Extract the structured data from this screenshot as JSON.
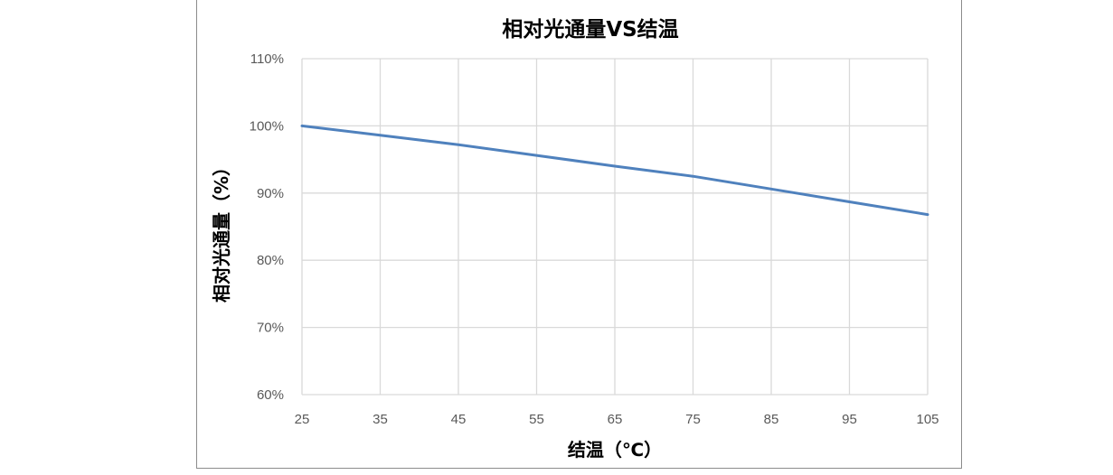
{
  "chart_data": {
    "type": "line",
    "title": "相对光通量VS结温",
    "xlabel": "结温（℃）",
    "ylabel": "相对光通量（%）",
    "x": [
      25,
      35,
      45,
      55,
      65,
      75,
      85,
      95,
      105
    ],
    "x_tick_labels": [
      "25",
      "35",
      "45",
      "55",
      "65",
      "75",
      "85",
      "95",
      "105"
    ],
    "xlim": [
      25,
      105
    ],
    "ylim": [
      60,
      110
    ],
    "y_ticks": [
      60,
      70,
      80,
      90,
      100,
      110
    ],
    "y_tick_labels": [
      "60%",
      "70%",
      "80%",
      "90%",
      "100%",
      "110%"
    ],
    "grid": true,
    "legend": "none",
    "series": [
      {
        "values": [
          100,
          98.6,
          97.2,
          95.6,
          94.0,
          92.5,
          90.6,
          88.7,
          86.8
        ],
        "color": "#4f81bd"
      }
    ],
    "colors": {
      "grid": "#d9d9d9",
      "axis_text": "#595959",
      "line": "#4f81bd"
    }
  }
}
